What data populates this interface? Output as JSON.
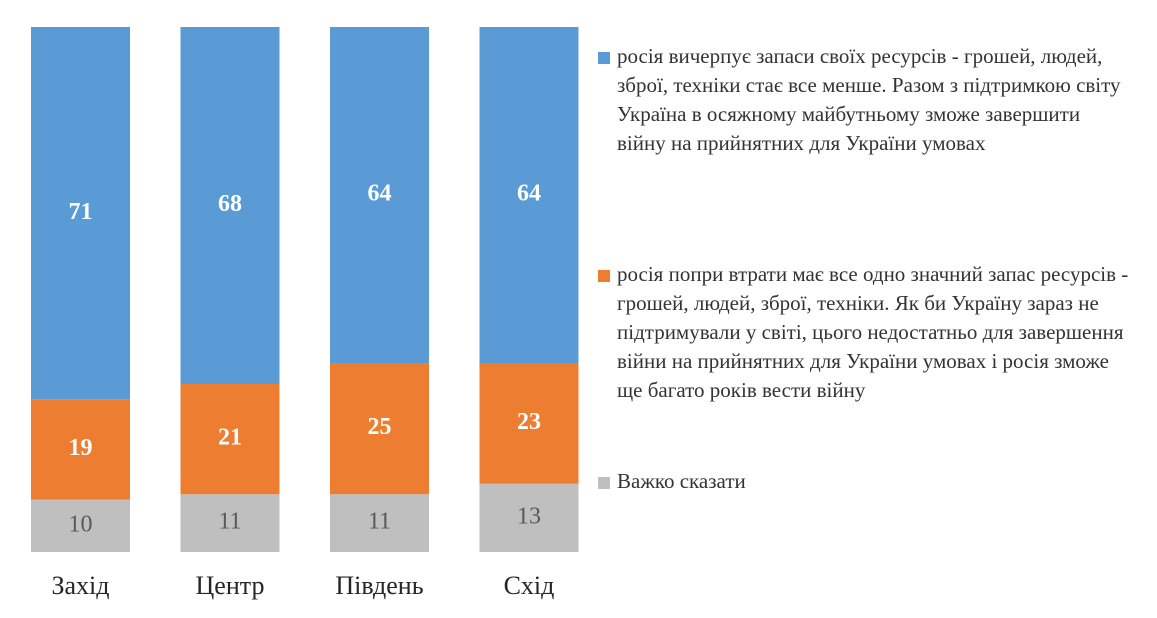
{
  "chart_data": {
    "type": "stacked_bar",
    "categories": [
      "Захід",
      "Центр",
      "Південь",
      "Схід"
    ],
    "series": [
      {
        "name": "Важко сказати",
        "color": "#bfbfbf",
        "label_color": "#595959",
        "label_weight": "normal",
        "values": [
          10,
          11,
          11,
          13
        ]
      },
      {
        "name": "росія попри втрати має все одно значний запас ресурсів - грошей, людей, зброї, техніки. Як би Україну зараз не підтримували у світі, цього недостатньо для завершення війни на прийнятних для України умовах і росія зможе ще багато років вести війну",
        "color": "#ed7d31",
        "label_color": "#ffffff",
        "label_weight": "bold",
        "values": [
          19,
          21,
          25,
          23
        ]
      },
      {
        "name": "росія вичерпує запаси своїх ресурсів - грошей, людей, зброї, техніки стає все менше. Разом з підтримкою світу Україна в осяжному майбутньому зможе завершити війну на прийнятних для України умовах",
        "color": "#5b9bd5",
        "label_color": "#ffffff",
        "label_weight": "bold",
        "values": [
          71,
          68,
          64,
          64
        ]
      }
    ]
  }
}
